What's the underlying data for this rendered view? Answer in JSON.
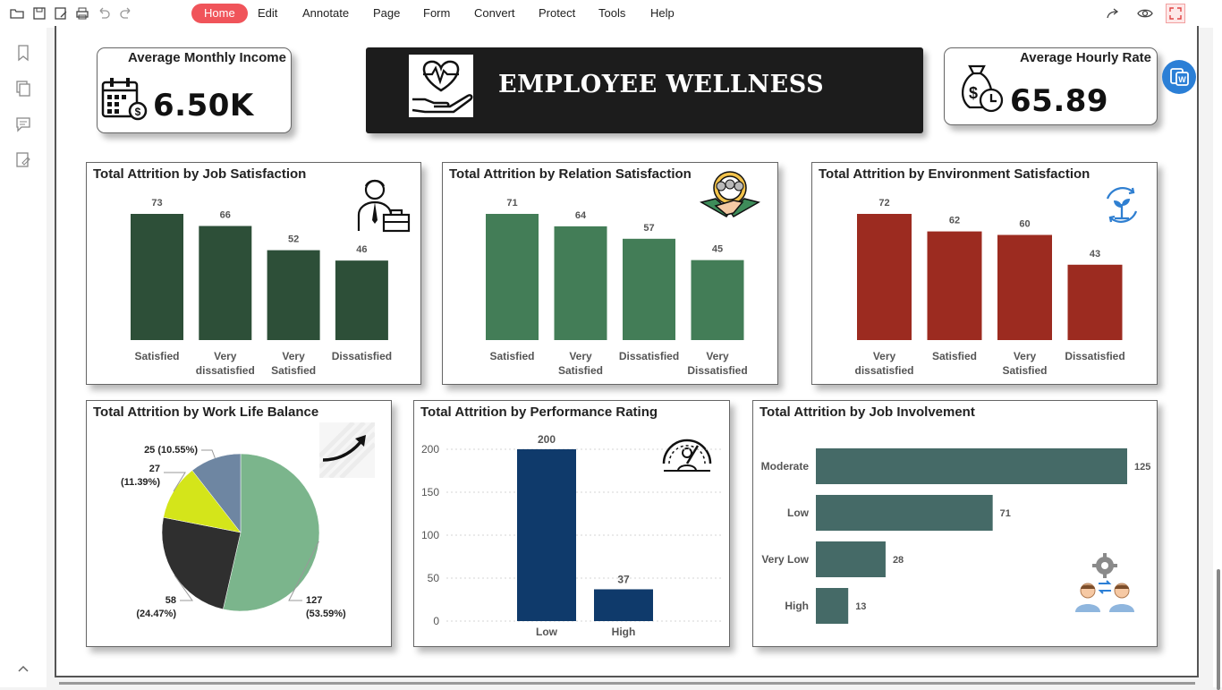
{
  "toolbar": {
    "menu": [
      "Home",
      "Edit",
      "Annotate",
      "Page",
      "Form",
      "Convert",
      "Protect",
      "Tools",
      "Help"
    ],
    "active_menu": "Home"
  },
  "kpis": {
    "income": {
      "label": "Average Monthly Income",
      "value": "6.50K"
    },
    "hourly": {
      "label": "Average Hourly Rate",
      "value": "65.89"
    }
  },
  "banner": {
    "title": "EMPLOYEE WELLNESS"
  },
  "colors": {
    "job_satisfaction": "#2d4f38",
    "relation_satisfaction": "#437d57",
    "environment_satisfaction": "#9c2b20",
    "performance": "#0f3a6b",
    "involvement": "#456a67",
    "menu_active": "#f0545a",
    "pie": [
      "#7bb58c",
      "#2f2f2f",
      "#d4e51a",
      "#6e86a2"
    ]
  },
  "chart_data": [
    {
      "id": "job_satisfaction",
      "type": "bar",
      "title": "Total Attrition by Job Satisfaction",
      "categories": [
        "Satisfied",
        "Very dissatisfied",
        "Very Satisfied",
        "Dissatisfied"
      ],
      "values": [
        73,
        66,
        52,
        46
      ]
    },
    {
      "id": "relation_satisfaction",
      "type": "bar",
      "title": "Total Attrition by Relation Satisfaction",
      "categories": [
        "Satisfied",
        "Very Satisfied",
        "Dissatisfied",
        "Very Dissatisfied"
      ],
      "values": [
        71,
        64,
        57,
        45
      ]
    },
    {
      "id": "environment_satisfaction",
      "type": "bar",
      "title": "Total Attrition by Environment Satisfaction",
      "categories": [
        "Very dissatisfied",
        "Satisfied",
        "Very Satisfied",
        "Dissatisfied"
      ],
      "values": [
        72,
        62,
        60,
        43
      ]
    },
    {
      "id": "work_life_balance",
      "type": "pie",
      "title": "Total Attrition by Work Life Balance",
      "slices": [
        {
          "value": 127,
          "pct": "53.59%"
        },
        {
          "value": 58,
          "pct": "24.47%"
        },
        {
          "value": 27,
          "pct": "11.39%"
        },
        {
          "value": 25,
          "pct": "10.55%"
        }
      ]
    },
    {
      "id": "performance_rating",
      "type": "bar",
      "title": "Total Attrition by Performance Rating",
      "categories": [
        "Low",
        "High"
      ],
      "values": [
        200,
        37
      ],
      "ylim": [
        0,
        200
      ],
      "yticks": [
        0,
        50,
        100,
        150,
        200
      ]
    },
    {
      "id": "job_involvement",
      "type": "bar",
      "orientation": "horizontal",
      "title": "Total Attrition by Job Involvement",
      "categories": [
        "Moderate",
        "Low",
        "Very Low",
        "High"
      ],
      "values": [
        125,
        71,
        28,
        13
      ]
    }
  ]
}
